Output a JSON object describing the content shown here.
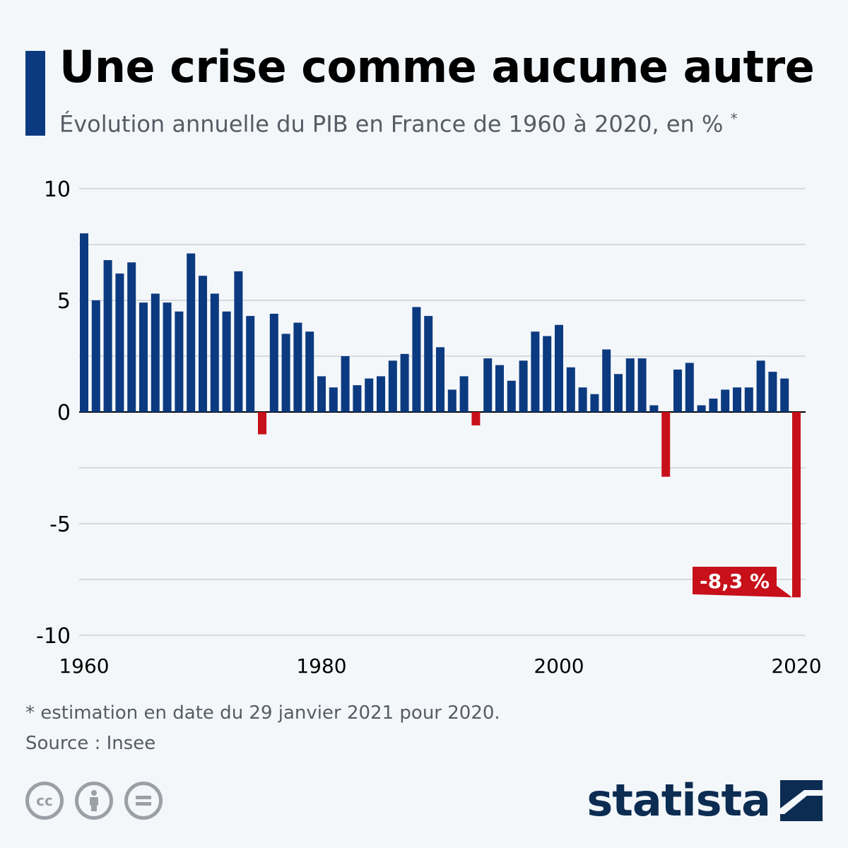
{
  "title": "Une crise comme aucune autre",
  "subtitle": "Évolution annuelle du PIB en France de 1960 à 2020, en %",
  "subtitle_mark": "*",
  "footnote": "* estimation en date du 29 janvier 2021 pour 2020.",
  "source": "Source : Insee",
  "brand": "statista",
  "license_icons": [
    "cc-icon",
    "by-icon",
    "nd-icon"
  ],
  "colors": {
    "positive": "#0c3a80",
    "negative": "#c8101a",
    "accent": "#0c3a80"
  },
  "chart_data": {
    "type": "bar",
    "x": [
      1960,
      1961,
      1962,
      1963,
      1964,
      1965,
      1966,
      1967,
      1968,
      1969,
      1970,
      1971,
      1972,
      1973,
      1974,
      1975,
      1976,
      1977,
      1978,
      1979,
      1980,
      1981,
      1982,
      1983,
      1984,
      1985,
      1986,
      1987,
      1988,
      1989,
      1990,
      1991,
      1992,
      1993,
      1994,
      1995,
      1996,
      1997,
      1998,
      1999,
      2000,
      2001,
      2002,
      2003,
      2004,
      2005,
      2006,
      2007,
      2008,
      2009,
      2010,
      2011,
      2012,
      2013,
      2014,
      2015,
      2016,
      2017,
      2018,
      2019,
      2020
    ],
    "values": [
      8.0,
      5.0,
      6.8,
      6.2,
      6.7,
      4.9,
      5.3,
      4.9,
      4.5,
      7.1,
      6.1,
      5.3,
      4.5,
      6.3,
      4.3,
      -1.0,
      4.4,
      3.5,
      4.0,
      3.6,
      1.6,
      1.1,
      2.5,
      1.2,
      1.5,
      1.6,
      2.3,
      2.6,
      4.7,
      4.3,
      2.9,
      1.0,
      1.6,
      -0.6,
      2.4,
      2.1,
      1.4,
      2.3,
      3.6,
      3.4,
      3.9,
      2.0,
      1.1,
      0.8,
      2.8,
      1.7,
      2.4,
      2.4,
      0.3,
      -2.9,
      1.9,
      2.2,
      0.3,
      0.6,
      1.0,
      1.1,
      1.1,
      2.3,
      1.8,
      1.5,
      -8.3
    ],
    "ylim": [
      -10,
      10
    ],
    "yticks": [
      10,
      5,
      0,
      -5,
      -10
    ],
    "xticks": [
      1960,
      1980,
      2000,
      2020
    ],
    "grid": true,
    "annotation": {
      "text": "-8,3 %",
      "year": 2020
    }
  }
}
